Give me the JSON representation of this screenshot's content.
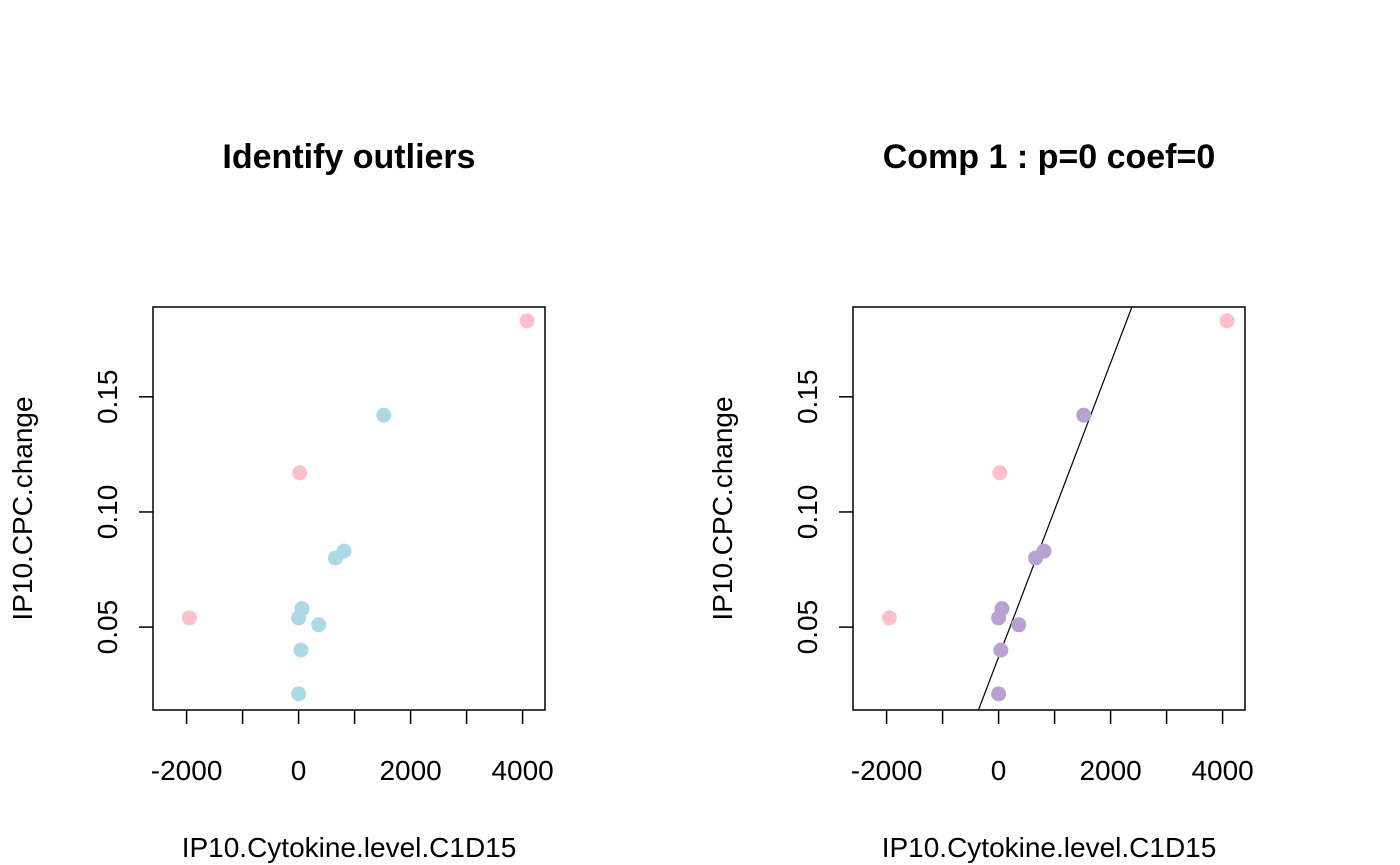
{
  "chart_data": [
    {
      "type": "scatter",
      "title": "Identify outliers",
      "xlabel": "IP10.Cytokine.level.C1D15",
      "ylabel": "IP10.CPC.change",
      "xlim": [
        -2600,
        4400
      ],
      "ylim": [
        0.014,
        0.189
      ],
      "x_ticks": [
        -2000,
        -1000,
        0,
        1000,
        2000,
        3000,
        4000
      ],
      "x_tick_labels": [
        "-2000",
        "",
        "0",
        "",
        "2000",
        "",
        "4000"
      ],
      "y_ticks": [
        0.05,
        0.1,
        0.15
      ],
      "y_tick_labels": [
        "0.05",
        "0.10",
        "0.15"
      ],
      "grid": false,
      "series": [
        {
          "color": "#FFC0CB",
          "points": [
            {
              "x": -1950,
              "y": 0.054
            },
            {
              "x": 20,
              "y": 0.117
            },
            {
              "x": 4080,
              "y": 0.183
            }
          ]
        },
        {
          "color": "#ADD8E6",
          "points": [
            {
              "x": 0,
              "y": 0.021
            },
            {
              "x": 40,
              "y": 0.04
            },
            {
              "x": 0,
              "y": 0.054
            },
            {
              "x": 60,
              "y": 0.058
            },
            {
              "x": 360,
              "y": 0.051
            },
            {
              "x": 660,
              "y": 0.08
            },
            {
              "x": 810,
              "y": 0.083
            },
            {
              "x": 1520,
              "y": 0.142
            }
          ]
        }
      ]
    },
    {
      "type": "scatter",
      "title": "Comp 1 : p=0 coef=0",
      "xlabel": "IP10.Cytokine.level.C1D15",
      "ylabel": "IP10.CPC.change",
      "xlim": [
        -2600,
        4400
      ],
      "ylim": [
        0.014,
        0.189
      ],
      "x_ticks": [
        -2000,
        -1000,
        0,
        1000,
        2000,
        3000,
        4000
      ],
      "x_tick_labels": [
        "-2000",
        "",
        "0",
        "",
        "2000",
        "",
        "4000"
      ],
      "y_ticks": [
        0.05,
        0.1,
        0.15
      ],
      "y_tick_labels": [
        "0.05",
        "0.10",
        "0.15"
      ],
      "grid": false,
      "series": [
        {
          "color": "#FFC0CB",
          "points": [
            {
              "x": -1950,
              "y": 0.054
            },
            {
              "x": 20,
              "y": 0.117
            },
            {
              "x": 4080,
              "y": 0.183
            }
          ]
        },
        {
          "color": "#B9A2D2",
          "points": [
            {
              "x": 0,
              "y": 0.021
            },
            {
              "x": 40,
              "y": 0.04
            },
            {
              "x": 0,
              "y": 0.054
            },
            {
              "x": 60,
              "y": 0.058
            },
            {
              "x": 360,
              "y": 0.051
            },
            {
              "x": 660,
              "y": 0.08
            },
            {
              "x": 810,
              "y": 0.083
            },
            {
              "x": 1520,
              "y": 0.142
            }
          ]
        }
      ],
      "fit_line": {
        "color": "#000000",
        "points": [
          {
            "x": -360,
            "y": 0.014
          },
          {
            "x": 2380,
            "y": 0.189
          }
        ]
      }
    }
  ]
}
